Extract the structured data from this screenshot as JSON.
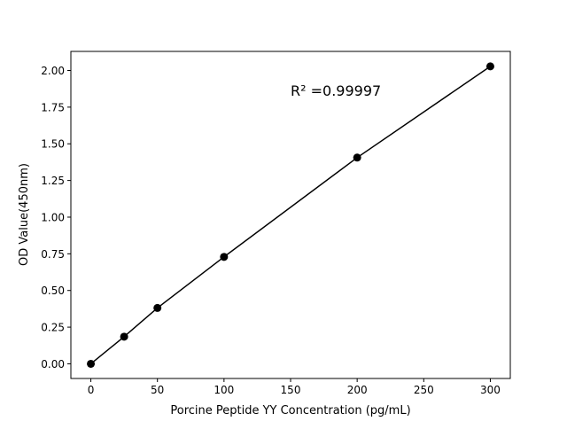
{
  "chart_data": {
    "type": "line",
    "title": "",
    "xlabel": "Porcine Peptide YY Concentration (pg/mL)",
    "ylabel": "OD Value(450nm)",
    "x": [
      0,
      25,
      50,
      100,
      200,
      300
    ],
    "y": [
      0.0,
      0.185,
      0.381,
      0.729,
      1.406,
      2.028
    ],
    "xlim": [
      -15,
      315
    ],
    "ylim": [
      -0.1,
      2.13
    ],
    "xticks": [
      0,
      50,
      100,
      150,
      200,
      250,
      300
    ],
    "xtick_labels": [
      "0",
      "50",
      "100",
      "150",
      "200",
      "250",
      "300"
    ],
    "yticks": [
      0,
      0.25,
      0.5,
      0.75,
      1.0,
      1.25,
      1.5,
      1.75,
      2.0
    ],
    "ytick_labels": [
      "0.00",
      "0.25",
      "0.50",
      "0.75",
      "1.00",
      "1.25",
      "1.50",
      "1.75",
      "2.00"
    ],
    "annotation": "R² =0.99997",
    "grid": false,
    "marker": "circle",
    "color": "#000000"
  }
}
